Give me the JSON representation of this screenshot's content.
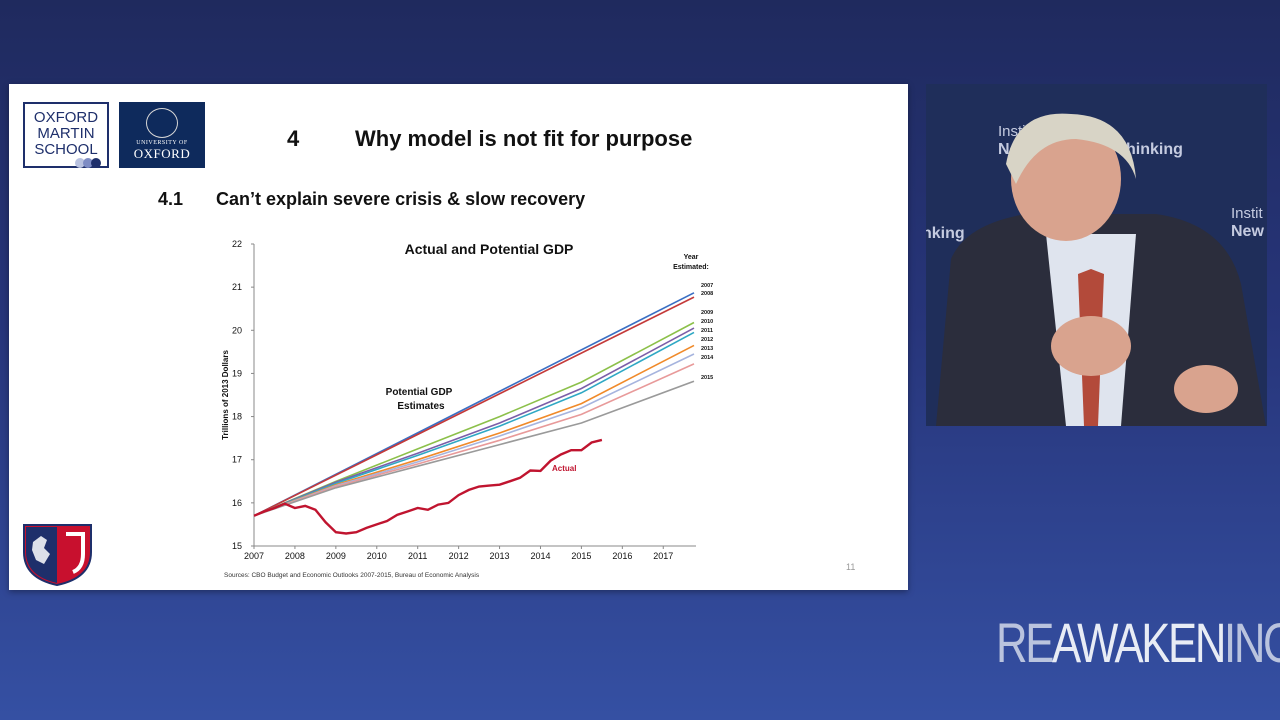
{
  "slide": {
    "logos": {
      "oxford_martin": [
        "OXFORD",
        "MARTIN",
        "SCHOOL"
      ],
      "university_of_oxford": {
        "small": "UNIVERSITY OF",
        "big": "OXFORD"
      }
    },
    "title_number": "4",
    "title": "Why model is not fit for purpose",
    "subtitle_number": "4.1",
    "subtitle": "Can’t explain severe crisis & slow recovery",
    "page_number": "11"
  },
  "chart_data": {
    "type": "line",
    "title": "Actual and Potential GDP",
    "ylabel": "Trillions of 2013 Dollars",
    "xlabel": "",
    "xlim": [
      2007,
      2017.8
    ],
    "ylim": [
      15,
      22
    ],
    "x_ticks": [
      "2007",
      "2008",
      "2009",
      "2010",
      "2011",
      "2012",
      "2013",
      "2014",
      "2015",
      "2016",
      "2017"
    ],
    "y_ticks": [
      "15",
      "16",
      "17",
      "18",
      "19",
      "20",
      "21",
      "22"
    ],
    "legend_title": "Year Estimated:",
    "annotation_potential": [
      "Potential GDP",
      "Estimates"
    ],
    "annotation_actual": "Actual",
    "source": "Sources: CBO Budget and Economic Outlooks 2007-2015, Bureau of Economic Analysis",
    "series": [
      {
        "name": "2007",
        "color": "#3a6fc4",
        "x": [
          2007,
          2017.75
        ],
        "y": [
          15.7,
          20.87
        ]
      },
      {
        "name": "2008",
        "color": "#c43a3a",
        "x": [
          2007,
          2017.75
        ],
        "y": [
          15.7,
          20.77
        ]
      },
      {
        "name": "2009",
        "color": "#8cc04a",
        "x": [
          2007,
          2009,
          2011,
          2013,
          2015,
          2017.75
        ],
        "y": [
          15.7,
          16.5,
          17.25,
          18.0,
          18.8,
          20.18
        ]
      },
      {
        "name": "2010",
        "color": "#7b5ea8",
        "x": [
          2007,
          2009,
          2011,
          2013,
          2015,
          2017.75
        ],
        "y": [
          15.7,
          16.48,
          17.15,
          17.85,
          18.65,
          20.05
        ]
      },
      {
        "name": "2011",
        "color": "#2fa8c4",
        "x": [
          2007,
          2009,
          2011,
          2013,
          2015,
          2017.75
        ],
        "y": [
          15.7,
          16.45,
          17.1,
          17.78,
          18.55,
          19.95
        ]
      },
      {
        "name": "2012",
        "color": "#f08a2a",
        "x": [
          2007,
          2009,
          2011,
          2013,
          2015,
          2017.75
        ],
        "y": [
          15.7,
          16.42,
          17.0,
          17.62,
          18.3,
          19.65
        ]
      },
      {
        "name": "2013",
        "color": "#a6b4de",
        "x": [
          2007,
          2009,
          2011,
          2013,
          2015,
          2017.75
        ],
        "y": [
          15.7,
          16.4,
          16.95,
          17.55,
          18.2,
          19.45
        ]
      },
      {
        "name": "2014",
        "color": "#e89a9a",
        "x": [
          2007,
          2009,
          2011,
          2013,
          2015,
          2017.75
        ],
        "y": [
          15.7,
          16.38,
          16.9,
          17.45,
          18.05,
          19.22
        ]
      },
      {
        "name": "2015",
        "color": "#9a9a9a",
        "x": [
          2007,
          2009,
          2011,
          2013,
          2015,
          2017.75
        ],
        "y": [
          15.7,
          16.35,
          16.85,
          17.35,
          17.85,
          18.82
        ]
      },
      {
        "name": "Actual",
        "color": "#c0142f",
        "x": [
          2007,
          2007.25,
          2007.5,
          2007.75,
          2008,
          2008.25,
          2008.5,
          2008.75,
          2009,
          2009.25,
          2009.5,
          2009.75,
          2010,
          2010.25,
          2010.5,
          2010.75,
          2011,
          2011.25,
          2011.5,
          2011.75,
          2012,
          2012.25,
          2012.5,
          2012.75,
          2013,
          2013.25,
          2013.5,
          2013.75,
          2014,
          2014.25,
          2014.5,
          2014.75,
          2015,
          2015.25,
          2015.5
        ],
        "y": [
          15.7,
          15.8,
          15.88,
          15.98,
          15.88,
          15.93,
          15.84,
          15.55,
          15.32,
          15.29,
          15.32,
          15.42,
          15.5,
          15.58,
          15.72,
          15.8,
          15.88,
          15.84,
          15.96,
          16.0,
          16.18,
          16.3,
          16.38,
          16.4,
          16.42,
          16.5,
          16.58,
          16.75,
          16.74,
          16.98,
          17.12,
          17.22,
          17.22,
          17.4,
          17.46
        ]
      }
    ]
  },
  "video": {
    "backdrop_text": [
      "Instit",
      "New Economic Thinking",
      "nking",
      "Instit",
      "New"
    ]
  },
  "brand": {
    "pre": "RE",
    "main": "AWAKEN",
    "post": "ING"
  }
}
